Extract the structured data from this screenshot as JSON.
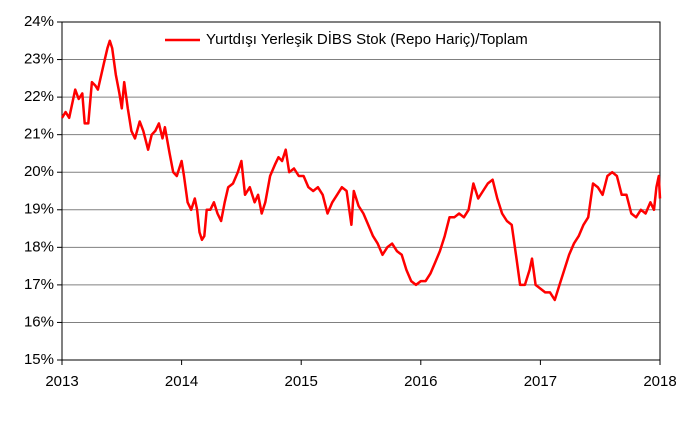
{
  "chart_data": {
    "type": "line",
    "x": [
      2013.0,
      2013.03,
      2013.06,
      2013.09,
      2013.11,
      2013.14,
      2013.17,
      2013.19,
      2013.22,
      2013.25,
      2013.28,
      2013.3,
      2013.35,
      2013.38,
      2013.4,
      2013.42,
      2013.45,
      2013.48,
      2013.5,
      2013.52,
      2013.55,
      2013.58,
      2013.61,
      2013.65,
      2013.68,
      2013.72,
      2013.75,
      2013.78,
      2013.81,
      2013.84,
      2013.86,
      2013.9,
      2013.93,
      2013.96,
      2014.0,
      2014.02,
      2014.05,
      2014.08,
      2014.11,
      2014.13,
      2014.15,
      2014.17,
      2014.19,
      2014.21,
      2014.24,
      2014.27,
      2014.3,
      2014.33,
      2014.36,
      2014.39,
      2014.43,
      2014.47,
      2014.5,
      2014.53,
      2014.57,
      2014.61,
      2014.64,
      2014.67,
      2014.7,
      2014.74,
      2014.78,
      2014.81,
      2014.84,
      2014.87,
      2014.9,
      2014.94,
      2014.98,
      2015.02,
      2015.06,
      2015.1,
      2015.14,
      2015.18,
      2015.22,
      2015.26,
      2015.3,
      2015.34,
      2015.38,
      2015.42,
      2015.44,
      2015.48,
      2015.52,
      2015.56,
      2015.6,
      2015.64,
      2015.68,
      2015.72,
      2015.76,
      2015.8,
      2015.84,
      2015.88,
      2015.92,
      2015.96,
      2016.0,
      2016.04,
      2016.08,
      2016.12,
      2016.16,
      2016.2,
      2016.24,
      2016.28,
      2016.32,
      2016.36,
      2016.4,
      2016.44,
      2016.48,
      2016.52,
      2016.56,
      2016.6,
      2016.64,
      2016.68,
      2016.72,
      2016.76,
      2016.8,
      2016.83,
      2016.87,
      2016.91,
      2016.93,
      2016.96,
      2017.0,
      2017.04,
      2017.08,
      2017.12,
      2017.16,
      2017.2,
      2017.24,
      2017.28,
      2017.32,
      2017.36,
      2017.4,
      2017.44,
      2017.48,
      2017.52,
      2017.56,
      2017.6,
      2017.64,
      2017.68,
      2017.72,
      2017.76,
      2017.8,
      2017.84,
      2017.88,
      2017.92,
      2017.95,
      2017.97,
      2017.99,
      2018.0
    ],
    "series": [
      {
        "name": "Yurtdışı Yerleşik DİBS Stok (Repo Hariç)/Toplam",
        "color": "#ff0000",
        "values": [
          21.45,
          21.6,
          21.45,
          21.9,
          22.2,
          21.95,
          22.1,
          21.3,
          21.3,
          22.4,
          22.3,
          22.2,
          22.9,
          23.3,
          23.5,
          23.3,
          22.6,
          22.1,
          21.7,
          22.4,
          21.7,
          21.1,
          20.9,
          21.35,
          21.1,
          20.6,
          21.0,
          21.1,
          21.3,
          20.9,
          21.2,
          20.5,
          20.0,
          19.9,
          20.3,
          19.9,
          19.2,
          19.0,
          19.3,
          19.0,
          18.4,
          18.2,
          18.3,
          19.0,
          19.0,
          19.2,
          18.9,
          18.7,
          19.2,
          19.6,
          19.7,
          20.0,
          20.3,
          19.4,
          19.6,
          19.2,
          19.4,
          18.9,
          19.2,
          19.9,
          20.2,
          20.4,
          20.3,
          20.6,
          20.0,
          20.1,
          19.9,
          19.9,
          19.6,
          19.5,
          19.6,
          19.4,
          18.9,
          19.2,
          19.4,
          19.6,
          19.5,
          18.6,
          19.5,
          19.1,
          18.9,
          18.6,
          18.3,
          18.1,
          17.8,
          18.0,
          18.1,
          17.9,
          17.8,
          17.4,
          17.1,
          17.0,
          17.1,
          17.1,
          17.3,
          17.6,
          17.9,
          18.3,
          18.8,
          18.8,
          18.9,
          18.8,
          19.0,
          19.7,
          19.3,
          19.5,
          19.7,
          19.8,
          19.3,
          18.9,
          18.7,
          18.6,
          17.7,
          17.0,
          17.0,
          17.4,
          17.7,
          17.0,
          16.9,
          16.8,
          16.8,
          16.6,
          17.0,
          17.4,
          17.8,
          18.1,
          18.3,
          18.6,
          18.8,
          19.7,
          19.6,
          19.4,
          19.9,
          20.0,
          19.9,
          19.4,
          19.4,
          18.9,
          18.8,
          19.0,
          18.9,
          19.2,
          19.0,
          19.6,
          19.9,
          19.3
        ]
      }
    ],
    "xlim": [
      2013,
      2018
    ],
    "xticks": [
      2013,
      2014,
      2015,
      2016,
      2017,
      2018
    ],
    "ylim": [
      15,
      24
    ],
    "yticks": [
      {
        "value": 15,
        "label": "15%"
      },
      {
        "value": 16,
        "label": "16%"
      },
      {
        "value": 17,
        "label": "17%"
      },
      {
        "value": 18,
        "label": "18%"
      },
      {
        "value": 19,
        "label": "19%"
      },
      {
        "value": 20,
        "label": "20%"
      },
      {
        "value": 21,
        "label": "21%"
      },
      {
        "value": 22,
        "label": "22%"
      },
      {
        "value": 23,
        "label": "23%"
      },
      {
        "value": 24,
        "label": "24%"
      }
    ],
    "grid": true,
    "legend": "top"
  }
}
